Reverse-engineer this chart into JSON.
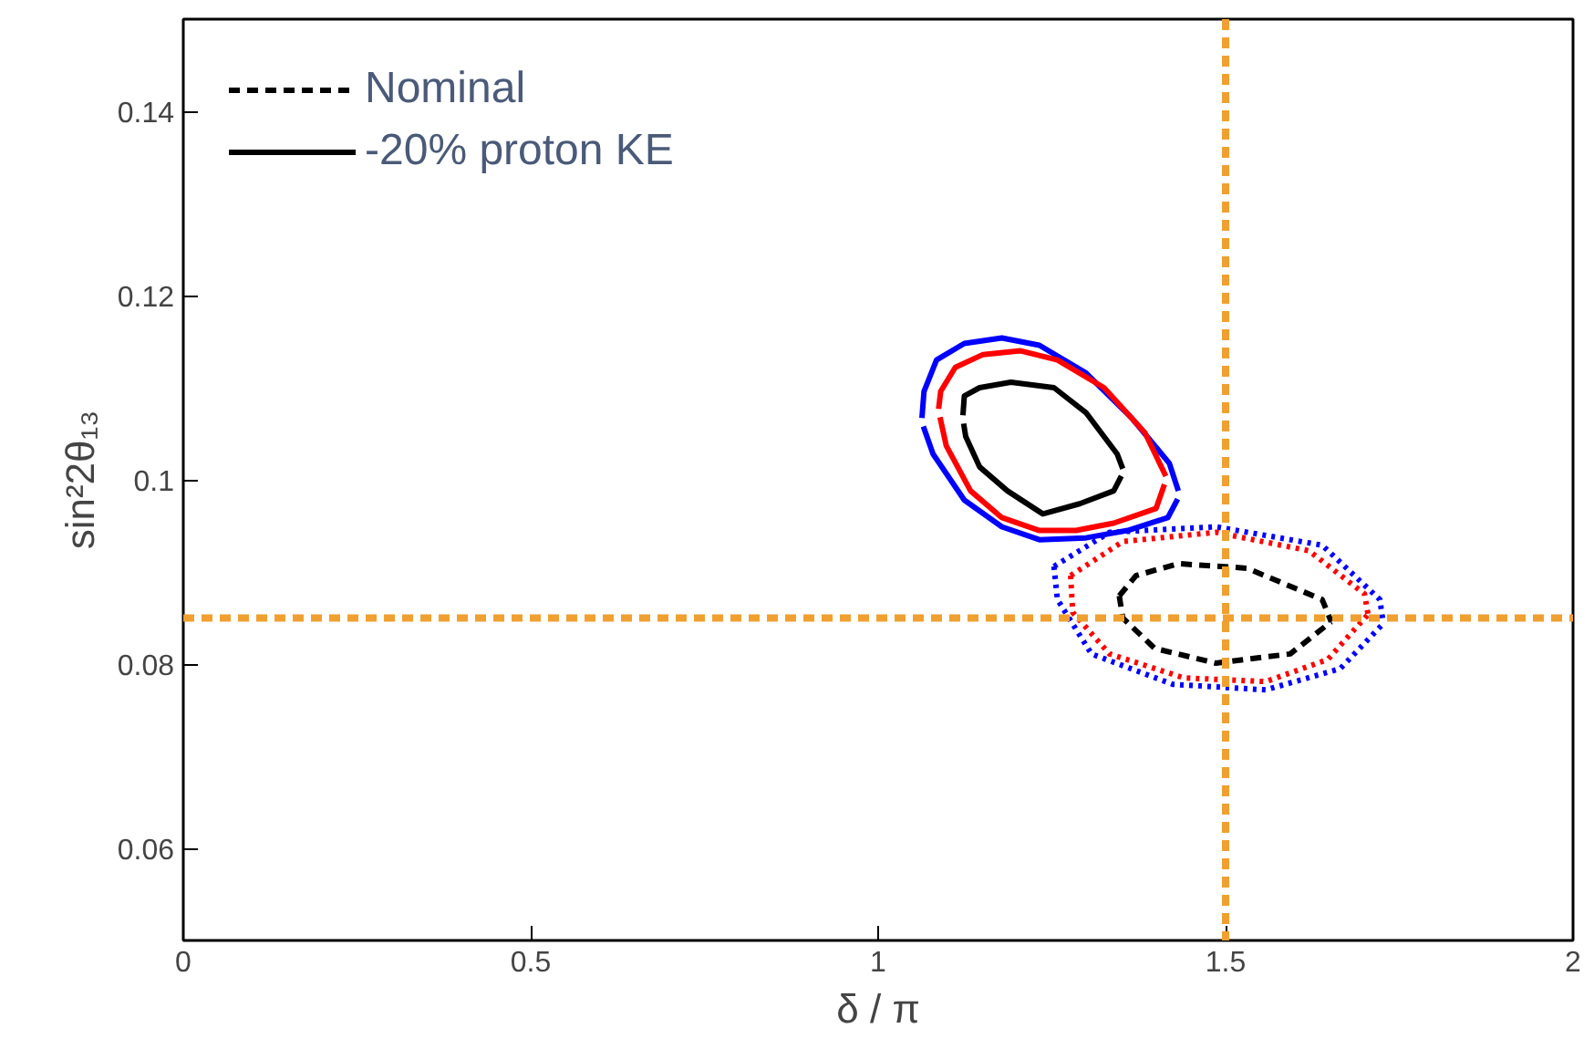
{
  "chart_data": {
    "type": "line",
    "xlabel": "δ / π",
    "ylabel": "sin²2θ₁₃",
    "xlim": [
      0,
      2
    ],
    "ylim": [
      0.05,
      0.15
    ],
    "xticks": [
      0,
      0.5,
      1,
      1.5,
      2
    ],
    "yticks": [
      0.06,
      0.08,
      0.1,
      0.12,
      0.14
    ],
    "grid": false,
    "legend": "top left",
    "marker": "none",
    "ref_lines": [
      {
        "axis": "x",
        "value": 1.5,
        "color": "#f0a030",
        "line_style": "dashed"
      },
      {
        "axis": "y",
        "value": 0.085,
        "color": "#f0a030",
        "line_style": "dashed"
      }
    ],
    "series": [
      {
        "color": "#0000ff",
        "line_style": "solid",
        "x": [
          1.063,
          1.066,
          1.084,
          1.124,
          1.178,
          1.232,
          1.299,
          1.365,
          1.419,
          1.432
        ],
        "values": [
          0.1067,
          0.1096,
          0.113,
          0.1148,
          0.1154,
          0.1146,
          0.1116,
          0.1067,
          0.1018,
          0.0988
        ]
      },
      {
        "color": "#0000ff",
        "line_style": "solid",
        "x": [
          1.065,
          1.079,
          1.124,
          1.178,
          1.232,
          1.299,
          1.359,
          1.417,
          1.431
        ],
        "values": [
          0.1058,
          0.1028,
          0.0978,
          0.0949,
          0.0935,
          0.0937,
          0.0945,
          0.0959,
          0.0979
        ]
      },
      {
        "color": "#ff0000",
        "line_style": "solid",
        "x": [
          1.087,
          1.09,
          1.111,
          1.151,
          1.205,
          1.258,
          1.325,
          1.384,
          1.414
        ],
        "values": [
          0.1077,
          0.1096,
          0.1122,
          0.1136,
          0.114,
          0.113,
          0.11,
          0.1051,
          0.1004
        ]
      },
      {
        "color": "#ff0000",
        "line_style": "solid",
        "x": [
          1.089,
          1.098,
          1.133,
          1.178,
          1.232,
          1.285,
          1.339,
          1.4,
          1.412
        ],
        "values": [
          0.1068,
          0.1037,
          0.0988,
          0.0959,
          0.0945,
          0.0945,
          0.0953,
          0.0969,
          0.0995
        ]
      },
      {
        "name": "-20% proton KE",
        "color": "#000000",
        "line_style": "solid",
        "x": [
          1.122,
          1.124,
          1.146,
          1.191,
          1.253,
          1.299,
          1.344,
          1.352
        ],
        "values": [
          0.107,
          0.1091,
          0.11,
          0.1106,
          0.11,
          0.1073,
          0.1028,
          0.1012
        ]
      },
      {
        "color": "#000000",
        "line_style": "solid",
        "x": [
          1.123,
          1.126,
          1.146,
          1.186,
          1.237,
          1.29,
          1.339,
          1.35
        ],
        "values": [
          0.1061,
          0.1047,
          0.1014,
          0.0988,
          0.0963,
          0.0974,
          0.0988,
          0.1004
        ]
      },
      {
        "color": "#0000ff",
        "line_style": "dotted",
        "x": [
          1.253,
          1.333,
          1.486,
          1.639,
          1.722,
          1.727
        ],
        "values": [
          0.0906,
          0.0943,
          0.0949,
          0.0929,
          0.087,
          0.0844
        ]
      },
      {
        "color": "#0000ff",
        "line_style": "dotted",
        "x": [
          1.253,
          1.258,
          1.307,
          1.424,
          1.558,
          1.665,
          1.727
        ],
        "values": [
          0.0906,
          0.087,
          0.0811,
          0.0778,
          0.0772,
          0.0795,
          0.0844
        ]
      },
      {
        "color": "#ff0000",
        "line_style": "dotted",
        "x": [
          1.277,
          1.352,
          1.486,
          1.62,
          1.7,
          1.705
        ],
        "values": [
          0.0896,
          0.0933,
          0.0943,
          0.0923,
          0.0876,
          0.0854
        ]
      },
      {
        "color": "#ff0000",
        "line_style": "dotted",
        "x": [
          1.277,
          1.28,
          1.333,
          1.44,
          1.558,
          1.647,
          1.705
        ],
        "values": [
          0.0896,
          0.0856,
          0.0811,
          0.0785,
          0.0781,
          0.0805,
          0.0854
        ]
      },
      {
        "name": "Nominal",
        "color": "#000000",
        "line_style": "dashed",
        "x": [
          1.347,
          1.371,
          1.432,
          1.531,
          1.639,
          1.652
        ],
        "values": [
          0.0874,
          0.0896,
          0.0909,
          0.0904,
          0.087,
          0.0846
        ]
      },
      {
        "color": "#000000",
        "line_style": "dashed",
        "x": [
          1.347,
          1.352,
          1.398,
          1.486,
          1.593,
          1.652
        ],
        "values": [
          0.0874,
          0.085,
          0.0817,
          0.0801,
          0.0811,
          0.0846
        ]
      }
    ]
  }
}
